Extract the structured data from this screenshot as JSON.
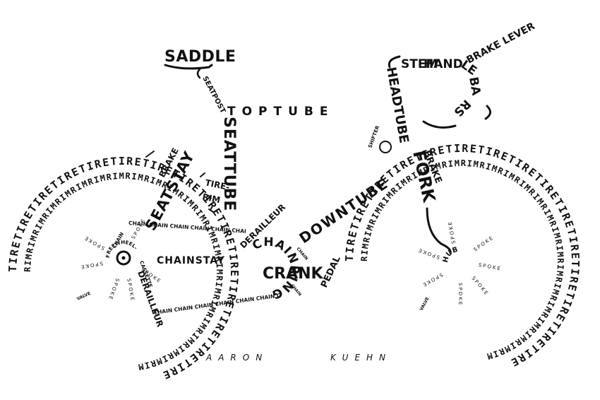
{
  "labels": {
    "saddle": "SADDLE",
    "seatpost": "SEATPOST",
    "toptube": "TOPTUBE",
    "stem": "STEM",
    "handlebars": "HANDLEBARS",
    "brake_lever": "BRAKE LEVER",
    "headtube": "HEADTUBE",
    "fork": "FORK",
    "shifter": "SHIFTER",
    "brake_front": "BRAKE",
    "brake_rear": "BRAKE",
    "seatstay": "SEATSTAY",
    "seattube": "SEATTUBE",
    "tire_rim": "TIRE- RIM",
    "downtube": "DOWNTUBE",
    "chainstay": "CHAINSTAY",
    "derailleur_front": "DERAILLEUR",
    "derailleur_rear": "DERAILLEUR",
    "chainring": "CHAINRING",
    "crank": "CRANK",
    "pedal": "PEDAL",
    "chain": "CHAIN",
    "freewheel": "FREEWHEEL-",
    "cassette": "CASSETTE",
    "hub": "HUB",
    "spoke": "SPOKE",
    "valve": "VALVE",
    "tire_text": "TIRETIRETIRETIRETIRETIRETIRETIRETIRETIRETIRETIRETIRETIRETIRE",
    "rim_text": "RIMRIMRIMRIMRIMRIMRIMRIMRIMRIMRIMRIMRIMRIMRIMRIMRIMRIMRIMRIMRIMRIMRIM",
    "chain_text": "CHAIN CHAIN CHAIN CHAIN CHAIN CHAIN CHAIN CHAIN",
    "spoke_text": "SPOKE"
  },
  "signature": {
    "first": "AARON",
    "last": "KUEHN"
  }
}
